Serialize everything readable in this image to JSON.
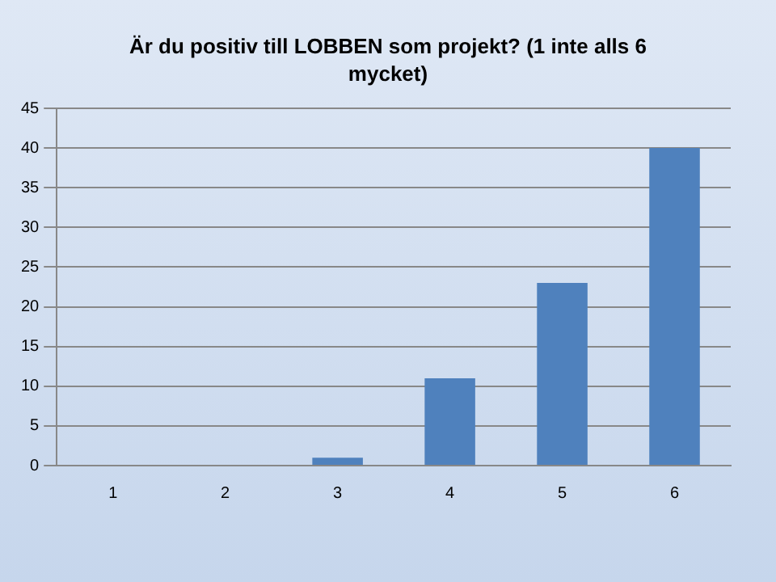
{
  "chart_data": {
    "type": "bar",
    "title": "Är du positiv till LOBBEN som projekt? (1 inte alls 6 mycket)",
    "categories": [
      "1",
      "2",
      "3",
      "4",
      "5",
      "6"
    ],
    "values": [
      0,
      0,
      1,
      11,
      23,
      40
    ],
    "color": "#4f81bd",
    "ylim": [
      0,
      45
    ],
    "yticks": [
      0,
      5,
      10,
      15,
      20,
      25,
      30,
      35,
      40,
      45
    ],
    "grid": "y",
    "legend": false
  }
}
